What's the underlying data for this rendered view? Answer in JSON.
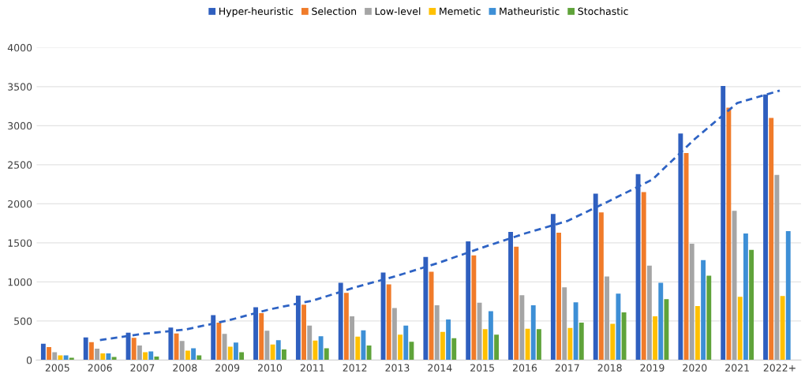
{
  "chart_data": {
    "type": "bar",
    "categories": [
      "2005",
      "2006",
      "2007",
      "2008",
      "2009",
      "2010",
      "2011",
      "2012",
      "2013",
      "2014",
      "2015",
      "2016",
      "2017",
      "2018",
      "2019",
      "2020",
      "2021",
      "2022+"
    ],
    "series": [
      {
        "name": "Hyper-heuristic",
        "color": "#2f5fbf",
        "values": [
          210,
          290,
          350,
          415,
          575,
          675,
          825,
          990,
          1120,
          1320,
          1520,
          1640,
          1870,
          2130,
          2380,
          2900,
          3510,
          3400
        ]
      },
      {
        "name": "Selection",
        "color": "#f07b2a",
        "values": [
          165,
          230,
          285,
          340,
          480,
          600,
          710,
          860,
          970,
          1130,
          1340,
          1450,
          1630,
          1890,
          2150,
          2650,
          3230,
          3100
        ]
      },
      {
        "name": "Low-level",
        "color": "#a5a5a5",
        "values": [
          100,
          145,
          185,
          245,
          335,
          375,
          440,
          560,
          665,
          700,
          735,
          830,
          930,
          1070,
          1210,
          1490,
          1910,
          2370
        ]
      },
      {
        "name": "Memetic",
        "color": "#ffc000",
        "values": [
          60,
          85,
          100,
          120,
          170,
          200,
          250,
          300,
          325,
          360,
          395,
          400,
          410,
          465,
          560,
          690,
          810,
          820
        ]
      },
      {
        "name": "Matheuristic",
        "color": "#3d8fd6",
        "values": [
          60,
          85,
          110,
          150,
          225,
          255,
          305,
          380,
          440,
          520,
          625,
          700,
          740,
          850,
          990,
          1280,
          1620,
          1650
        ]
      },
      {
        "name": "Stochastic",
        "color": "#5fa33a",
        "values": [
          30,
          40,
          45,
          60,
          100,
          135,
          150,
          185,
          235,
          280,
          325,
          395,
          480,
          610,
          780,
          1080,
          1410,
          null
        ]
      },
      {
        "type": "line",
        "color": "#2e63c4",
        "line_style": "dashed",
        "values": [
          null,
          255,
          335,
          390,
          505,
          650,
          760,
          930,
          1080,
          1250,
          1440,
          1620,
          1780,
          2040,
          2310,
          2830,
          3290,
          3450
        ]
      }
    ],
    "ylim": [
      0,
      4000
    ],
    "yticks": [
      0,
      500,
      1000,
      1500,
      2000,
      2500,
      3000,
      3500,
      4000
    ],
    "grid": "y",
    "legend": "top"
  }
}
